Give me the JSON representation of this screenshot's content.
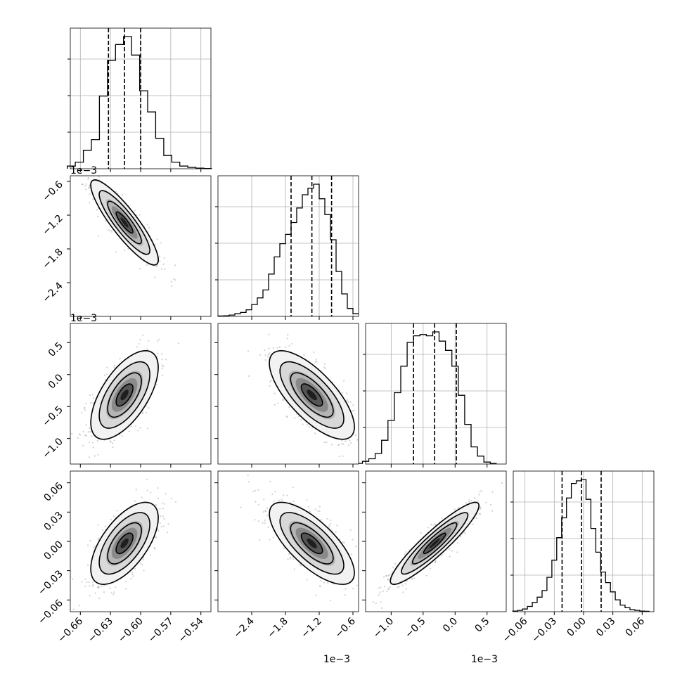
{
  "chart_data": {
    "type": "corner",
    "parameters": [
      {
        "bins": [
          -0.669,
          -0.661,
          -0.653,
          -0.645,
          -0.637,
          -0.629,
          -0.621,
          -0.613,
          -0.605,
          -0.597,
          -0.589,
          -0.581,
          -0.573,
          -0.565,
          -0.557,
          -0.549,
          -0.541,
          -0.533
        ],
        "hist": [
          0.02,
          0.05,
          0.14,
          0.22,
          0.55,
          0.82,
          0.94,
          1.0,
          0.86,
          0.59,
          0.43,
          0.23,
          0.1,
          0.05,
          0.02,
          0.01,
          0.005,
          0.002
        ],
        "quantiles": [
          -0.632,
          -0.616,
          -0.6
        ],
        "range": [
          -0.67,
          -0.53
        ],
        "ticks": [
          "−0.66",
          "−0.63",
          "−0.60",
          "−0.57",
          "−0.54"
        ],
        "tick_values": [
          -0.66,
          -0.63,
          -0.6,
          -0.57,
          -0.54
        ],
        "offset_label": ""
      },
      {
        "bins": [
          -2.95,
          -2.85,
          -2.75,
          -2.65,
          -2.55,
          -2.45,
          -2.35,
          -2.25,
          -2.15,
          -2.05,
          -1.95,
          -1.85,
          -1.75,
          -1.65,
          -1.55,
          -1.45,
          -1.35,
          -1.25,
          -1.15,
          -1.05,
          -0.95,
          -0.85,
          -0.75,
          -0.65,
          -0.55
        ],
        "hist": [
          0.003,
          0.005,
          0.01,
          0.02,
          0.03,
          0.05,
          0.09,
          0.14,
          0.2,
          0.32,
          0.45,
          0.55,
          0.62,
          0.71,
          0.82,
          0.92,
          0.97,
          1.0,
          0.89,
          0.77,
          0.58,
          0.34,
          0.17,
          0.06,
          0.02
        ],
        "quantiles": [
          -1.7,
          -1.33,
          -0.98
        ],
        "range": [
          -3.0,
          -0.5
        ],
        "ticks": [
          "−2.4",
          "−1.8",
          "−1.2",
          "−0.6"
        ],
        "tick_values": [
          -2.4,
          -1.8,
          -1.2,
          -0.6
        ],
        "offset_label": "1e−3"
      },
      {
        "bins": [
          -1.5,
          -1.4,
          -1.3,
          -1.2,
          -1.1,
          -1.0,
          -0.9,
          -0.8,
          -0.7,
          -0.6,
          -0.5,
          -0.4,
          -0.3,
          -0.2,
          -0.1,
          0.0,
          0.1,
          0.2,
          0.3,
          0.4,
          0.5,
          0.6
        ],
        "hist": [
          0.005,
          0.02,
          0.04,
          0.08,
          0.18,
          0.33,
          0.54,
          0.74,
          0.92,
          0.97,
          0.98,
          0.97,
          1.0,
          0.93,
          0.86,
          0.74,
          0.52,
          0.3,
          0.13,
          0.06,
          0.015,
          0.005
        ],
        "quantiles": [
          -0.65,
          -0.32,
          0.02
        ],
        "range": [
          -1.4,
          0.8
        ],
        "ticks": [
          "−1.0",
          "−0.5",
          "0.0",
          "0.5"
        ],
        "tick_values": [
          -1.0,
          -0.5,
          0.0,
          0.5
        ],
        "offset_label": "1e−3"
      },
      {
        "bins": [
          -0.07,
          -0.065,
          -0.06,
          -0.055,
          -0.05,
          -0.045,
          -0.04,
          -0.035,
          -0.03,
          -0.025,
          -0.02,
          -0.015,
          -0.01,
          -0.005,
          0.0,
          0.005,
          0.01,
          0.015,
          0.02,
          0.025,
          0.03,
          0.035,
          0.04,
          0.045,
          0.05,
          0.055,
          0.06,
          0.065
        ],
        "hist": [
          0.005,
          0.01,
          0.02,
          0.04,
          0.07,
          0.11,
          0.16,
          0.26,
          0.39,
          0.56,
          0.71,
          0.86,
          0.97,
          0.99,
          1.0,
          0.85,
          0.63,
          0.45,
          0.3,
          0.22,
          0.15,
          0.09,
          0.05,
          0.03,
          0.015,
          0.01,
          0.005,
          0.003
        ],
        "quantiles": [
          -0.022,
          -0.002,
          0.018
        ],
        "range": [
          -0.072,
          0.072
        ],
        "ticks": [
          "−0.06",
          "−0.03",
          "0.00",
          "0.03",
          "0.06"
        ],
        "tick_values": [
          -0.06,
          -0.03,
          0.0,
          0.03,
          0.06
        ],
        "offset_label": ""
      }
    ],
    "correlations": [
      [
        1,
        -0.88,
        0.62,
        0.62
      ],
      [
        -0.88,
        1,
        -0.72,
        -0.72
      ],
      [
        0.62,
        -0.72,
        1,
        0.92
      ],
      [
        0.62,
        -0.72,
        0.92,
        1
      ]
    ],
    "means": [
      -0.616,
      -1.33,
      -0.32,
      -0.002
    ],
    "sigmas": [
      0.016,
      0.36,
      0.33,
      0.02
    ],
    "contour_levels": [
      0.5,
      1.0,
      1.5,
      2.0
    ],
    "grid": true,
    "colors": {
      "hist": "#000000",
      "contour": "#000000",
      "points": "#9a9a9a"
    }
  }
}
